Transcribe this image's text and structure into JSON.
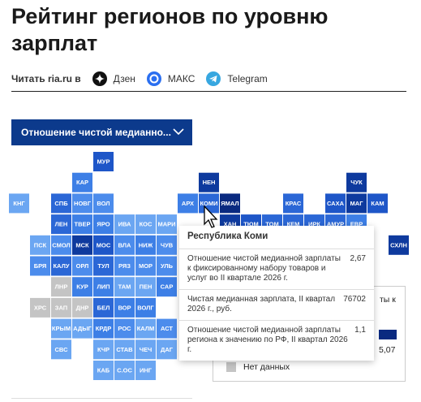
{
  "header": {
    "title": "Рейтинг регионов по уровню зарплат",
    "read_in": "Читать ria.ru в",
    "links": [
      "Дзен",
      "МАКС",
      "Telegram"
    ]
  },
  "dropdown": {
    "label": "Отношение чистой медианно..."
  },
  "tiles": [
    {
      "label": "МУР",
      "color": "#1e56c8"
    },
    {
      "label": "КАР",
      "color": "#3d7fe6"
    },
    {
      "label": "НЕН",
      "color": "#0e3a9e"
    },
    {
      "label": "ЧУК",
      "color": "#0e3a9e"
    },
    {
      "label": "КНГ",
      "color": "#6ba6f2"
    },
    {
      "label": "СПБ",
      "color": "#2b67d6"
    },
    {
      "label": "НОВГ",
      "color": "#4c8cec"
    },
    {
      "label": "ВОЛ",
      "color": "#4c8cec"
    },
    {
      "label": "АРХ",
      "color": "#3d7fe6"
    },
    {
      "label": "КОМИ",
      "color": "#2b67d6"
    },
    {
      "label": "ЯМАЛ",
      "color": "#0a2a80"
    },
    {
      "label": "КРАС",
      "color": "#2b67d6"
    },
    {
      "label": "САХА",
      "color": "#1e56c8"
    },
    {
      "label": "МАГ",
      "color": "#0e3a9e"
    },
    {
      "label": "КАМ",
      "color": "#1e56c8"
    },
    {
      "label": "ЛЕН",
      "color": "#2b67d6"
    },
    {
      "label": "ТВЕР",
      "color": "#3d7fe6"
    },
    {
      "label": "ЯРО",
      "color": "#3d7fe6"
    },
    {
      "label": "ИВА",
      "color": "#6ba6f2"
    },
    {
      "label": "КОС",
      "color": "#6ba6f2"
    },
    {
      "label": "МАРИ",
      "color": "#6ba6f2"
    },
    {
      "label": "ХАН",
      "color": "#0e3a9e"
    },
    {
      "label": "ТЮМ",
      "color": "#1e56c8"
    },
    {
      "label": "ТОМ",
      "color": "#2b67d6"
    },
    {
      "label": "КЕМ",
      "color": "#2b67d6"
    },
    {
      "label": "ИРК",
      "color": "#2b67d6"
    },
    {
      "label": "АМУР",
      "color": "#2b67d6"
    },
    {
      "label": "ЕВР",
      "color": "#3d7fe6"
    },
    {
      "label": "ПСК",
      "color": "#6ba6f2"
    },
    {
      "label": "СМОЛ",
      "color": "#4c8cec"
    },
    {
      "label": "МСК",
      "color": "#0e3a9e"
    },
    {
      "label": "МОС",
      "color": "#1e56c8"
    },
    {
      "label": "ВЛА",
      "color": "#4c8cec"
    },
    {
      "label": "НИЖ",
      "color": "#3d7fe6"
    },
    {
      "label": "ЧУВ",
      "color": "#4c8cec"
    },
    {
      "label": "СХЛН",
      "color": "#0e3a9e"
    },
    {
      "label": "БРЯ",
      "color": "#4c8cec"
    },
    {
      "label": "КАЛУ",
      "color": "#2b67d6"
    },
    {
      "label": "ОРЛ",
      "color": "#4c8cec"
    },
    {
      "label": "ТУЛ",
      "color": "#2b67d6"
    },
    {
      "label": "РЯЗ",
      "color": "#4c8cec"
    },
    {
      "label": "МОР",
      "color": "#4c8cec"
    },
    {
      "label": "УЛЬ",
      "color": "#4c8cec"
    },
    {
      "label": "ЛНР",
      "color": "#c4c4c4"
    },
    {
      "label": "КУР",
      "color": "#3d7fe6"
    },
    {
      "label": "ЛИП",
      "color": "#3d7fe6"
    },
    {
      "label": "ТАМ",
      "color": "#6ba6f2"
    },
    {
      "label": "ПЕН",
      "color": "#6ba6f2"
    },
    {
      "label": "САР",
      "color": "#3d7fe6"
    },
    {
      "label": "ХРС",
      "color": "#c4c4c4"
    },
    {
      "label": "ЗАП",
      "color": "#c4c4c4"
    },
    {
      "label": "ДНР",
      "color": "#c4c4c4"
    },
    {
      "label": "БЕЛ",
      "color": "#2b67d6"
    },
    {
      "label": "ВОР",
      "color": "#3d7fe6"
    },
    {
      "label": "ВОЛГ",
      "color": "#3d7fe6"
    },
    {
      "label": "КРЫМ",
      "color": "#6ba6f2"
    },
    {
      "label": "АДЫГ",
      "color": "#6ba6f2"
    },
    {
      "label": "КРДР",
      "color": "#3d7fe6"
    },
    {
      "label": "РОС",
      "color": "#4c8cec"
    },
    {
      "label": "КАЛМ",
      "color": "#6ba6f2"
    },
    {
      "label": "АСТ",
      "color": "#4c8cec"
    },
    {
      "label": "СВС",
      "color": "#6ba6f2"
    },
    {
      "label": "КЧР",
      "color": "#6ba6f2"
    },
    {
      "label": "СТАВ",
      "color": "#6ba6f2"
    },
    {
      "label": "ЧЕЧ",
      "color": "#6ba6f2"
    },
    {
      "label": "ДАГ",
      "color": "#6ba6f2"
    },
    {
      "label": "КАБ",
      "color": "#6ba6f2"
    },
    {
      "label": "С.ОС",
      "color": "#6ba6f2"
    },
    {
      "label": "ИНГ",
      "color": "#6ba6f2"
    }
  ],
  "tooltip": {
    "title": "Республика Коми",
    "rows": [
      {
        "label": "Отношение чистой медианной зарплаты к фиксированному набору товаров и услуг во II квартале 2026 г.",
        "value": "2,67"
      },
      {
        "label": "Чистая медианная зарплата, II квартал 2026 г., руб.",
        "value": "76702"
      },
      {
        "label": "Отношение чистой медианной зарплаты региона к значению по РФ, II квартал 2026 г.",
        "value": "1,1"
      }
    ]
  },
  "legend": {
    "fragment": "ты к",
    "max": "5,07",
    "no_data": "Нет данных",
    "max_color": "#0a2a80",
    "no_data_color": "#c4c4c4"
  }
}
